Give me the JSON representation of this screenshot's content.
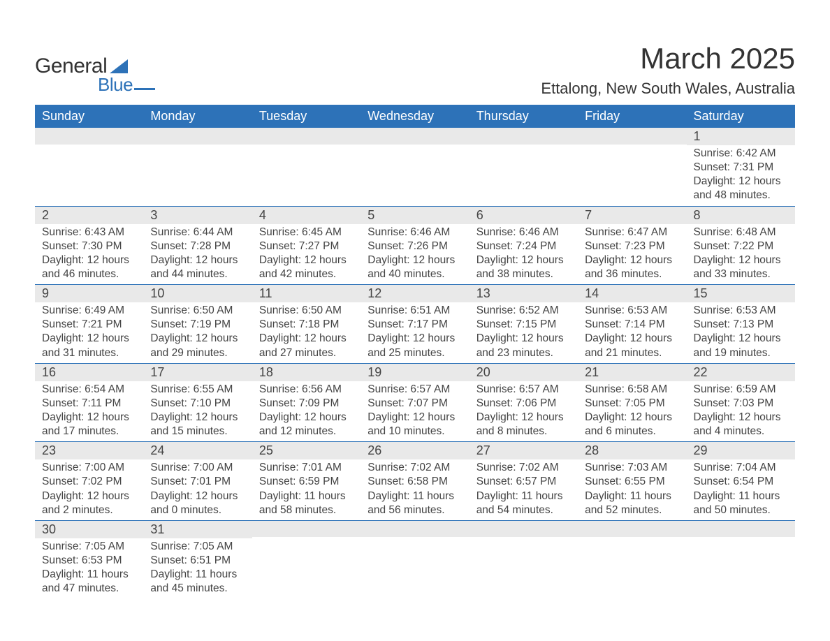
{
  "logo": {
    "text_general": "General",
    "text_blue": "Blue",
    "triangle_color": "#2d72b8",
    "text_color_dark": "#333333"
  },
  "header": {
    "month_title": "March 2025",
    "location": "Ettalong, New South Wales, Australia"
  },
  "colors": {
    "header_bg": "#2d72b8",
    "header_fg": "#ffffff",
    "daynum_bg": "#e9e9e9",
    "rule": "#2d72b8",
    "body_text": "#444444",
    "page_bg": "#ffffff"
  },
  "typography": {
    "month_title_fontsize": 42,
    "location_fontsize": 22,
    "dayheader_fontsize": 18,
    "daynum_fontsize": 18,
    "body_fontsize": 15.5,
    "font_family": "Arial"
  },
  "day_headers": [
    "Sunday",
    "Monday",
    "Tuesday",
    "Wednesday",
    "Thursday",
    "Friday",
    "Saturday"
  ],
  "weeks": [
    [
      null,
      null,
      null,
      null,
      null,
      null,
      {
        "num": "1",
        "sunrise": "Sunrise: 6:42 AM",
        "sunset": "Sunset: 7:31 PM",
        "daylight1": "Daylight: 12 hours",
        "daylight2": "and 48 minutes."
      }
    ],
    [
      {
        "num": "2",
        "sunrise": "Sunrise: 6:43 AM",
        "sunset": "Sunset: 7:30 PM",
        "daylight1": "Daylight: 12 hours",
        "daylight2": "and 46 minutes."
      },
      {
        "num": "3",
        "sunrise": "Sunrise: 6:44 AM",
        "sunset": "Sunset: 7:28 PM",
        "daylight1": "Daylight: 12 hours",
        "daylight2": "and 44 minutes."
      },
      {
        "num": "4",
        "sunrise": "Sunrise: 6:45 AM",
        "sunset": "Sunset: 7:27 PM",
        "daylight1": "Daylight: 12 hours",
        "daylight2": "and 42 minutes."
      },
      {
        "num": "5",
        "sunrise": "Sunrise: 6:46 AM",
        "sunset": "Sunset: 7:26 PM",
        "daylight1": "Daylight: 12 hours",
        "daylight2": "and 40 minutes."
      },
      {
        "num": "6",
        "sunrise": "Sunrise: 6:46 AM",
        "sunset": "Sunset: 7:24 PM",
        "daylight1": "Daylight: 12 hours",
        "daylight2": "and 38 minutes."
      },
      {
        "num": "7",
        "sunrise": "Sunrise: 6:47 AM",
        "sunset": "Sunset: 7:23 PM",
        "daylight1": "Daylight: 12 hours",
        "daylight2": "and 36 minutes."
      },
      {
        "num": "8",
        "sunrise": "Sunrise: 6:48 AM",
        "sunset": "Sunset: 7:22 PM",
        "daylight1": "Daylight: 12 hours",
        "daylight2": "and 33 minutes."
      }
    ],
    [
      {
        "num": "9",
        "sunrise": "Sunrise: 6:49 AM",
        "sunset": "Sunset: 7:21 PM",
        "daylight1": "Daylight: 12 hours",
        "daylight2": "and 31 minutes."
      },
      {
        "num": "10",
        "sunrise": "Sunrise: 6:50 AM",
        "sunset": "Sunset: 7:19 PM",
        "daylight1": "Daylight: 12 hours",
        "daylight2": "and 29 minutes."
      },
      {
        "num": "11",
        "sunrise": "Sunrise: 6:50 AM",
        "sunset": "Sunset: 7:18 PM",
        "daylight1": "Daylight: 12 hours",
        "daylight2": "and 27 minutes."
      },
      {
        "num": "12",
        "sunrise": "Sunrise: 6:51 AM",
        "sunset": "Sunset: 7:17 PM",
        "daylight1": "Daylight: 12 hours",
        "daylight2": "and 25 minutes."
      },
      {
        "num": "13",
        "sunrise": "Sunrise: 6:52 AM",
        "sunset": "Sunset: 7:15 PM",
        "daylight1": "Daylight: 12 hours",
        "daylight2": "and 23 minutes."
      },
      {
        "num": "14",
        "sunrise": "Sunrise: 6:53 AM",
        "sunset": "Sunset: 7:14 PM",
        "daylight1": "Daylight: 12 hours",
        "daylight2": "and 21 minutes."
      },
      {
        "num": "15",
        "sunrise": "Sunrise: 6:53 AM",
        "sunset": "Sunset: 7:13 PM",
        "daylight1": "Daylight: 12 hours",
        "daylight2": "and 19 minutes."
      }
    ],
    [
      {
        "num": "16",
        "sunrise": "Sunrise: 6:54 AM",
        "sunset": "Sunset: 7:11 PM",
        "daylight1": "Daylight: 12 hours",
        "daylight2": "and 17 minutes."
      },
      {
        "num": "17",
        "sunrise": "Sunrise: 6:55 AM",
        "sunset": "Sunset: 7:10 PM",
        "daylight1": "Daylight: 12 hours",
        "daylight2": "and 15 minutes."
      },
      {
        "num": "18",
        "sunrise": "Sunrise: 6:56 AM",
        "sunset": "Sunset: 7:09 PM",
        "daylight1": "Daylight: 12 hours",
        "daylight2": "and 12 minutes."
      },
      {
        "num": "19",
        "sunrise": "Sunrise: 6:57 AM",
        "sunset": "Sunset: 7:07 PM",
        "daylight1": "Daylight: 12 hours",
        "daylight2": "and 10 minutes."
      },
      {
        "num": "20",
        "sunrise": "Sunrise: 6:57 AM",
        "sunset": "Sunset: 7:06 PM",
        "daylight1": "Daylight: 12 hours",
        "daylight2": "and 8 minutes."
      },
      {
        "num": "21",
        "sunrise": "Sunrise: 6:58 AM",
        "sunset": "Sunset: 7:05 PM",
        "daylight1": "Daylight: 12 hours",
        "daylight2": "and 6 minutes."
      },
      {
        "num": "22",
        "sunrise": "Sunrise: 6:59 AM",
        "sunset": "Sunset: 7:03 PM",
        "daylight1": "Daylight: 12 hours",
        "daylight2": "and 4 minutes."
      }
    ],
    [
      {
        "num": "23",
        "sunrise": "Sunrise: 7:00 AM",
        "sunset": "Sunset: 7:02 PM",
        "daylight1": "Daylight: 12 hours",
        "daylight2": "and 2 minutes."
      },
      {
        "num": "24",
        "sunrise": "Sunrise: 7:00 AM",
        "sunset": "Sunset: 7:01 PM",
        "daylight1": "Daylight: 12 hours",
        "daylight2": "and 0 minutes."
      },
      {
        "num": "25",
        "sunrise": "Sunrise: 7:01 AM",
        "sunset": "Sunset: 6:59 PM",
        "daylight1": "Daylight: 11 hours",
        "daylight2": "and 58 minutes."
      },
      {
        "num": "26",
        "sunrise": "Sunrise: 7:02 AM",
        "sunset": "Sunset: 6:58 PM",
        "daylight1": "Daylight: 11 hours",
        "daylight2": "and 56 minutes."
      },
      {
        "num": "27",
        "sunrise": "Sunrise: 7:02 AM",
        "sunset": "Sunset: 6:57 PM",
        "daylight1": "Daylight: 11 hours",
        "daylight2": "and 54 minutes."
      },
      {
        "num": "28",
        "sunrise": "Sunrise: 7:03 AM",
        "sunset": "Sunset: 6:55 PM",
        "daylight1": "Daylight: 11 hours",
        "daylight2": "and 52 minutes."
      },
      {
        "num": "29",
        "sunrise": "Sunrise: 7:04 AM",
        "sunset": "Sunset: 6:54 PM",
        "daylight1": "Daylight: 11 hours",
        "daylight2": "and 50 minutes."
      }
    ],
    [
      {
        "num": "30",
        "sunrise": "Sunrise: 7:05 AM",
        "sunset": "Sunset: 6:53 PM",
        "daylight1": "Daylight: 11 hours",
        "daylight2": "and 47 minutes."
      },
      {
        "num": "31",
        "sunrise": "Sunrise: 7:05 AM",
        "sunset": "Sunset: 6:51 PM",
        "daylight1": "Daylight: 11 hours",
        "daylight2": "and 45 minutes."
      },
      null,
      null,
      null,
      null,
      null
    ]
  ]
}
